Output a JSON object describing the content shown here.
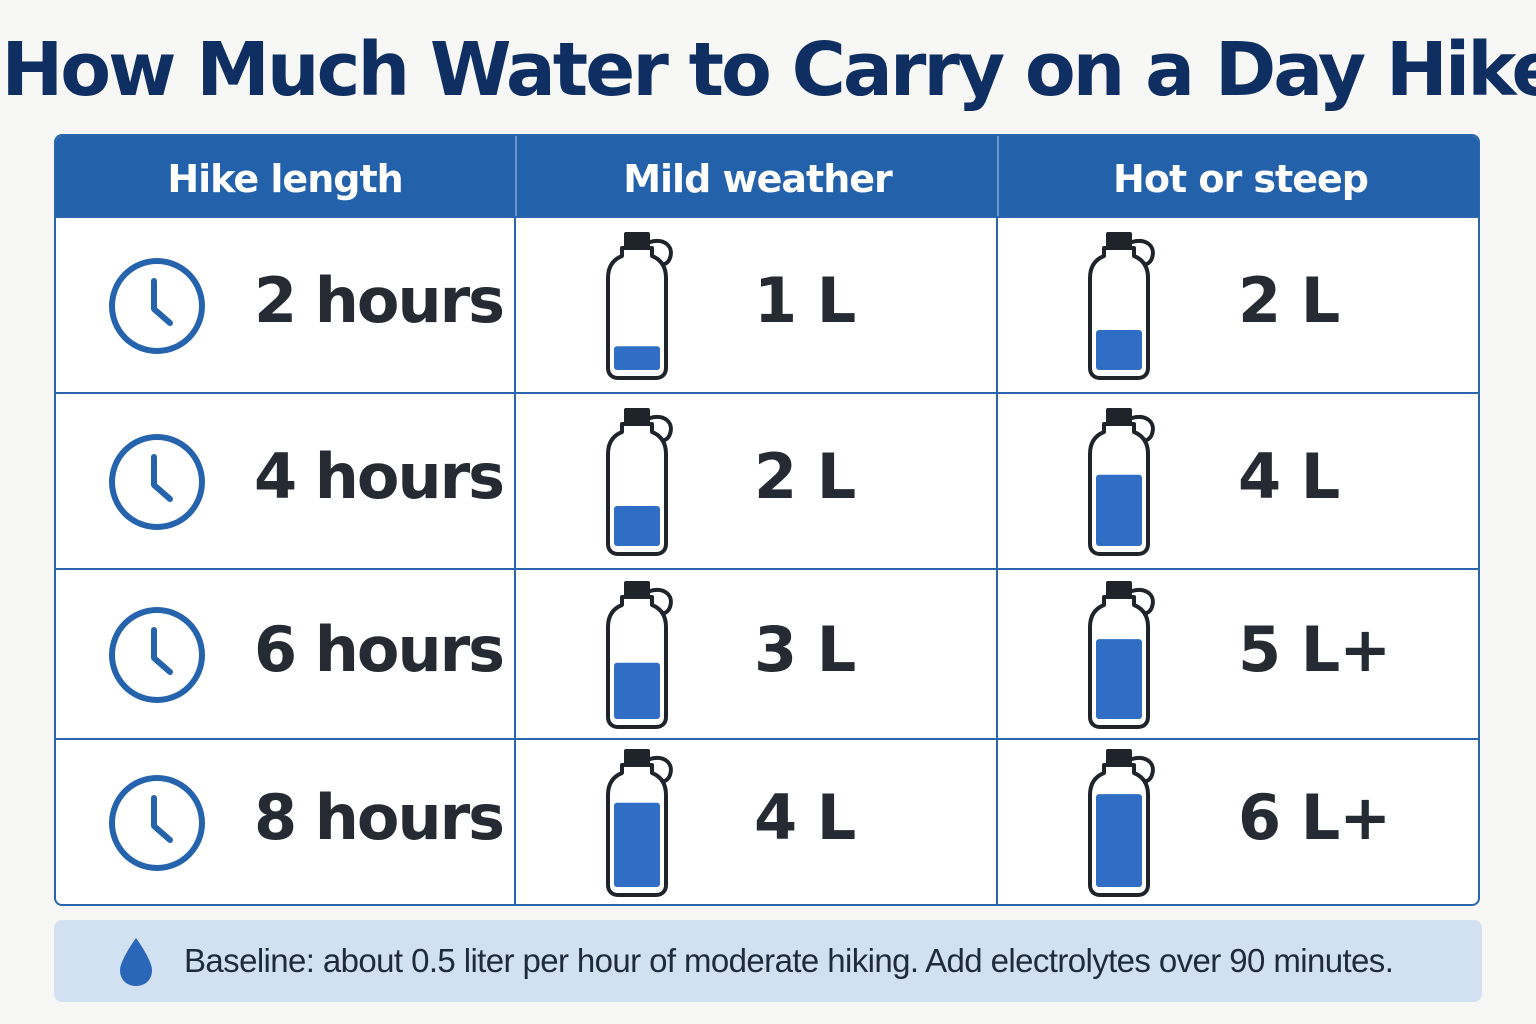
{
  "title": "How Much Water to Carry on a Day Hike",
  "colors": {
    "title": "#0f2f63",
    "header_bg": "#2361ab",
    "water": "#2f6ec4",
    "note_bg": "#d2e1f1"
  },
  "table": {
    "headers": [
      "Hike length",
      "Mild weather",
      "Hot or steep"
    ],
    "rows": [
      {
        "hours": "2 hours",
        "mild": "1 L",
        "mild_fill": 0.22,
        "hot": "2 L",
        "hot_fill": 0.37
      },
      {
        "hours": "4 hours",
        "mild": "2 L",
        "mild_fill": 0.37,
        "hot": "4 L",
        "hot_fill": 0.66
      },
      {
        "hours": "6 hours",
        "mild": "3 L",
        "mild_fill": 0.52,
        "hot": "5 L+",
        "hot_fill": 0.74
      },
      {
        "hours": "8 hours",
        "mild": "4 L",
        "mild_fill": 0.78,
        "hot": "6 L+",
        "hot_fill": 0.86
      }
    ]
  },
  "row_icon": "clock-icon",
  "bottle_icon": "water-bottle-icon",
  "note": {
    "icon": "water-drop-icon",
    "text": "Baseline: about 0.5 liter per hour of moderate hiking. Add electrolytes over 90 minutes."
  }
}
